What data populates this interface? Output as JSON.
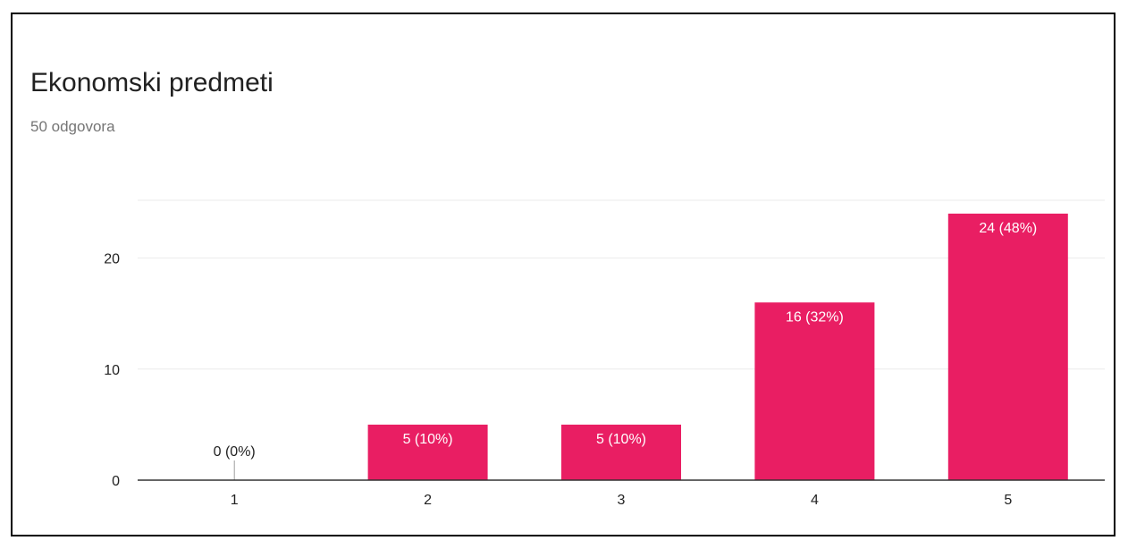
{
  "card": {
    "title": "Ekonomski predmeti",
    "subtitle": "50 odgovora"
  },
  "colors": {
    "bar": "#e91e63",
    "grid": "#ebebeb",
    "axis": "#333333",
    "tick_text": "#222222",
    "label_inside": "#ffffff",
    "label_outside": "#222222"
  },
  "chart_data": {
    "type": "bar",
    "title": "Ekonomski predmeti",
    "categories": [
      "1",
      "2",
      "3",
      "4",
      "5"
    ],
    "values": [
      0,
      5,
      5,
      16,
      24
    ],
    "data_labels": [
      "0 (0%)",
      "5 (10%)",
      "5 (10%)",
      "16 (32%)",
      "24 (48%)"
    ],
    "yticks": [
      0,
      10,
      20
    ],
    "ylim": [
      0,
      25.2
    ],
    "xlabel": "",
    "ylabel": "",
    "grid": true,
    "legend": "none"
  }
}
